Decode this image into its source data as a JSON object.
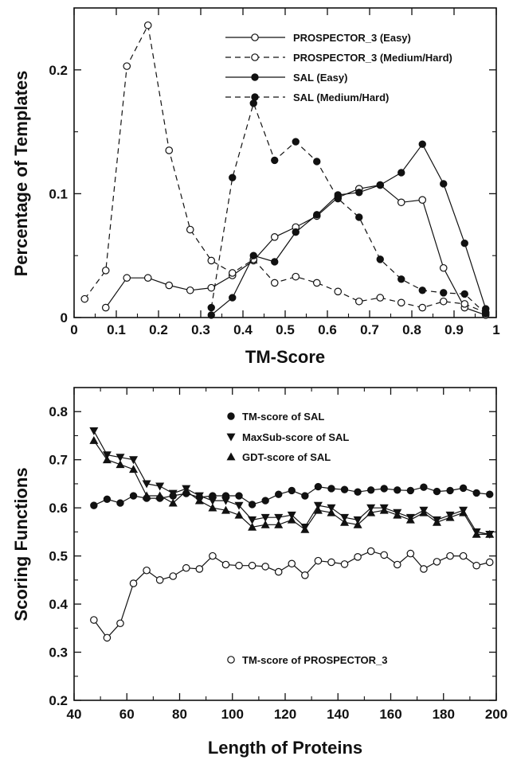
{
  "chart_data": [
    {
      "type": "line",
      "xlabel": "TM-Score",
      "ylabel": "Percentage of Templates",
      "xlim": [
        0,
        1
      ],
      "ylim": [
        0,
        0.25
      ],
      "xticks": [
        "0",
        "0.1",
        "0.2",
        "0.3",
        "0.4",
        "0.5",
        "0.6",
        "0.7",
        "0.8",
        "0.9",
        "1"
      ],
      "yticks": [
        {
          "value": 0,
          "label": "0"
        },
        {
          "value": 0.1,
          "label": "0.1"
        },
        {
          "value": 0.2,
          "label": "0.2"
        }
      ],
      "legend_position": "top-right",
      "series": [
        {
          "name": "PROSPECTOR_3 (Easy)",
          "style": "solid",
          "marker": "open-circle",
          "x": [
            0.075,
            0.125,
            0.175,
            0.225,
            0.275,
            0.325,
            0.375,
            0.425,
            0.475,
            0.525,
            0.575,
            0.625,
            0.675,
            0.725,
            0.775,
            0.825,
            0.875,
            0.925,
            0.975
          ],
          "y": [
            0.008,
            0.032,
            0.032,
            0.026,
            0.022,
            0.024,
            0.034,
            0.046,
            0.065,
            0.073,
            0.082,
            0.097,
            0.104,
            0.107,
            0.093,
            0.095,
            0.04,
            0.008,
            0.002
          ]
        },
        {
          "name": "PROSPECTOR_3 (Medium/Hard)",
          "style": "dashed",
          "marker": "open-circle",
          "x": [
            0.025,
            0.075,
            0.125,
            0.175,
            0.225,
            0.275,
            0.325,
            0.375,
            0.425,
            0.475,
            0.525,
            0.575,
            0.625,
            0.675,
            0.725,
            0.775,
            0.825,
            0.875,
            0.925,
            0.975
          ],
          "y": [
            0.015,
            0.038,
            0.203,
            0.236,
            0.135,
            0.071,
            0.046,
            0.036,
            0.047,
            0.028,
            0.033,
            0.028,
            0.021,
            0.013,
            0.016,
            0.012,
            0.008,
            0.013,
            0.011,
            0.004
          ]
        },
        {
          "name": "SAL (Easy)",
          "style": "solid",
          "marker": "filled-circle",
          "x": [
            0.325,
            0.375,
            0.425,
            0.475,
            0.525,
            0.575,
            0.625,
            0.675,
            0.725,
            0.775,
            0.825,
            0.875,
            0.925,
            0.975
          ],
          "y": [
            0.002,
            0.016,
            0.05,
            0.045,
            0.069,
            0.083,
            0.099,
            0.101,
            0.107,
            0.117,
            0.14,
            0.108,
            0.06,
            0.007
          ]
        },
        {
          "name": "SAL (Medium/Hard)",
          "style": "dashed",
          "marker": "filled-circle",
          "x": [
            0.325,
            0.375,
            0.425,
            0.475,
            0.525,
            0.575,
            0.625,
            0.675,
            0.725,
            0.775,
            0.825,
            0.875,
            0.925,
            0.975
          ],
          "y": [
            0.008,
            0.113,
            0.173,
            0.127,
            0.142,
            0.126,
            0.096,
            0.081,
            0.047,
            0.031,
            0.022,
            0.02,
            0.019,
            0.003
          ]
        }
      ]
    },
    {
      "type": "line",
      "xlabel": "Length of Proteins",
      "ylabel": "Scoring Functions",
      "xlim": [
        40,
        200
      ],
      "ylim": [
        0.2,
        0.85
      ],
      "xticks": [
        "40",
        "60",
        "80",
        "100",
        "120",
        "140",
        "160",
        "180",
        "200"
      ],
      "yticks": [
        {
          "value": 0.2,
          "label": "0.2"
        },
        {
          "value": 0.3,
          "label": "0.3"
        },
        {
          "value": 0.4,
          "label": "0.4"
        },
        {
          "value": 0.5,
          "label": "0.5"
        },
        {
          "value": 0.6,
          "label": "0.6"
        },
        {
          "value": 0.7,
          "label": "0.7"
        },
        {
          "value": 0.8,
          "label": "0.8"
        }
      ],
      "x": [
        47.5,
        52.5,
        57.5,
        62.5,
        67.5,
        72.5,
        77.5,
        82.5,
        87.5,
        92.5,
        97.5,
        102.5,
        107.5,
        112.5,
        117.5,
        122.5,
        127.5,
        132.5,
        137.5,
        142.5,
        147.5,
        152.5,
        157.5,
        162.5,
        167.5,
        172.5,
        177.5,
        182.5,
        187.5,
        192.5,
        197.5
      ],
      "series": [
        {
          "name": "TM-score of SAL",
          "marker": "filled-circle",
          "values": [
            0.605,
            0.618,
            0.61,
            0.625,
            0.62,
            0.62,
            0.625,
            0.63,
            0.622,
            0.625,
            0.625,
            0.625,
            0.607,
            0.615,
            0.628,
            0.636,
            0.625,
            0.644,
            0.64,
            0.638,
            0.633,
            0.637,
            0.64,
            0.637,
            0.636,
            0.643,
            0.634,
            0.636,
            0.641,
            0.631,
            0.628
          ]
        },
        {
          "name": "MaxSub-score of SAL",
          "marker": "filled-triangle-down",
          "values": [
            0.76,
            0.71,
            0.705,
            0.7,
            0.65,
            0.645,
            0.63,
            0.64,
            0.625,
            0.615,
            0.615,
            0.605,
            0.575,
            0.58,
            0.58,
            0.585,
            0.56,
            0.605,
            0.6,
            0.58,
            0.575,
            0.6,
            0.6,
            0.59,
            0.58,
            0.595,
            0.575,
            0.585,
            0.595,
            0.55,
            0.545
          ]
        },
        {
          "name": "GDT-score of SAL",
          "marker": "filled-triangle-up",
          "values": [
            0.74,
            0.7,
            0.69,
            0.68,
            0.625,
            0.625,
            0.61,
            0.635,
            0.615,
            0.6,
            0.595,
            0.585,
            0.56,
            0.565,
            0.565,
            0.575,
            0.555,
            0.595,
            0.59,
            0.57,
            0.565,
            0.59,
            0.595,
            0.585,
            0.575,
            0.59,
            0.57,
            0.58,
            0.59,
            0.545,
            0.545
          ]
        },
        {
          "name": "TM-score of PROSPECTOR_3",
          "marker": "open-circle",
          "values": [
            0.367,
            0.33,
            0.36,
            0.443,
            0.47,
            0.45,
            0.458,
            0.475,
            0.473,
            0.5,
            0.482,
            0.48,
            0.48,
            0.478,
            0.467,
            0.484,
            0.46,
            0.49,
            0.487,
            0.483,
            0.498,
            0.51,
            0.502,
            0.482,
            0.505,
            0.473,
            0.488,
            0.5,
            0.5,
            0.48,
            0.487
          ]
        }
      ]
    }
  ]
}
